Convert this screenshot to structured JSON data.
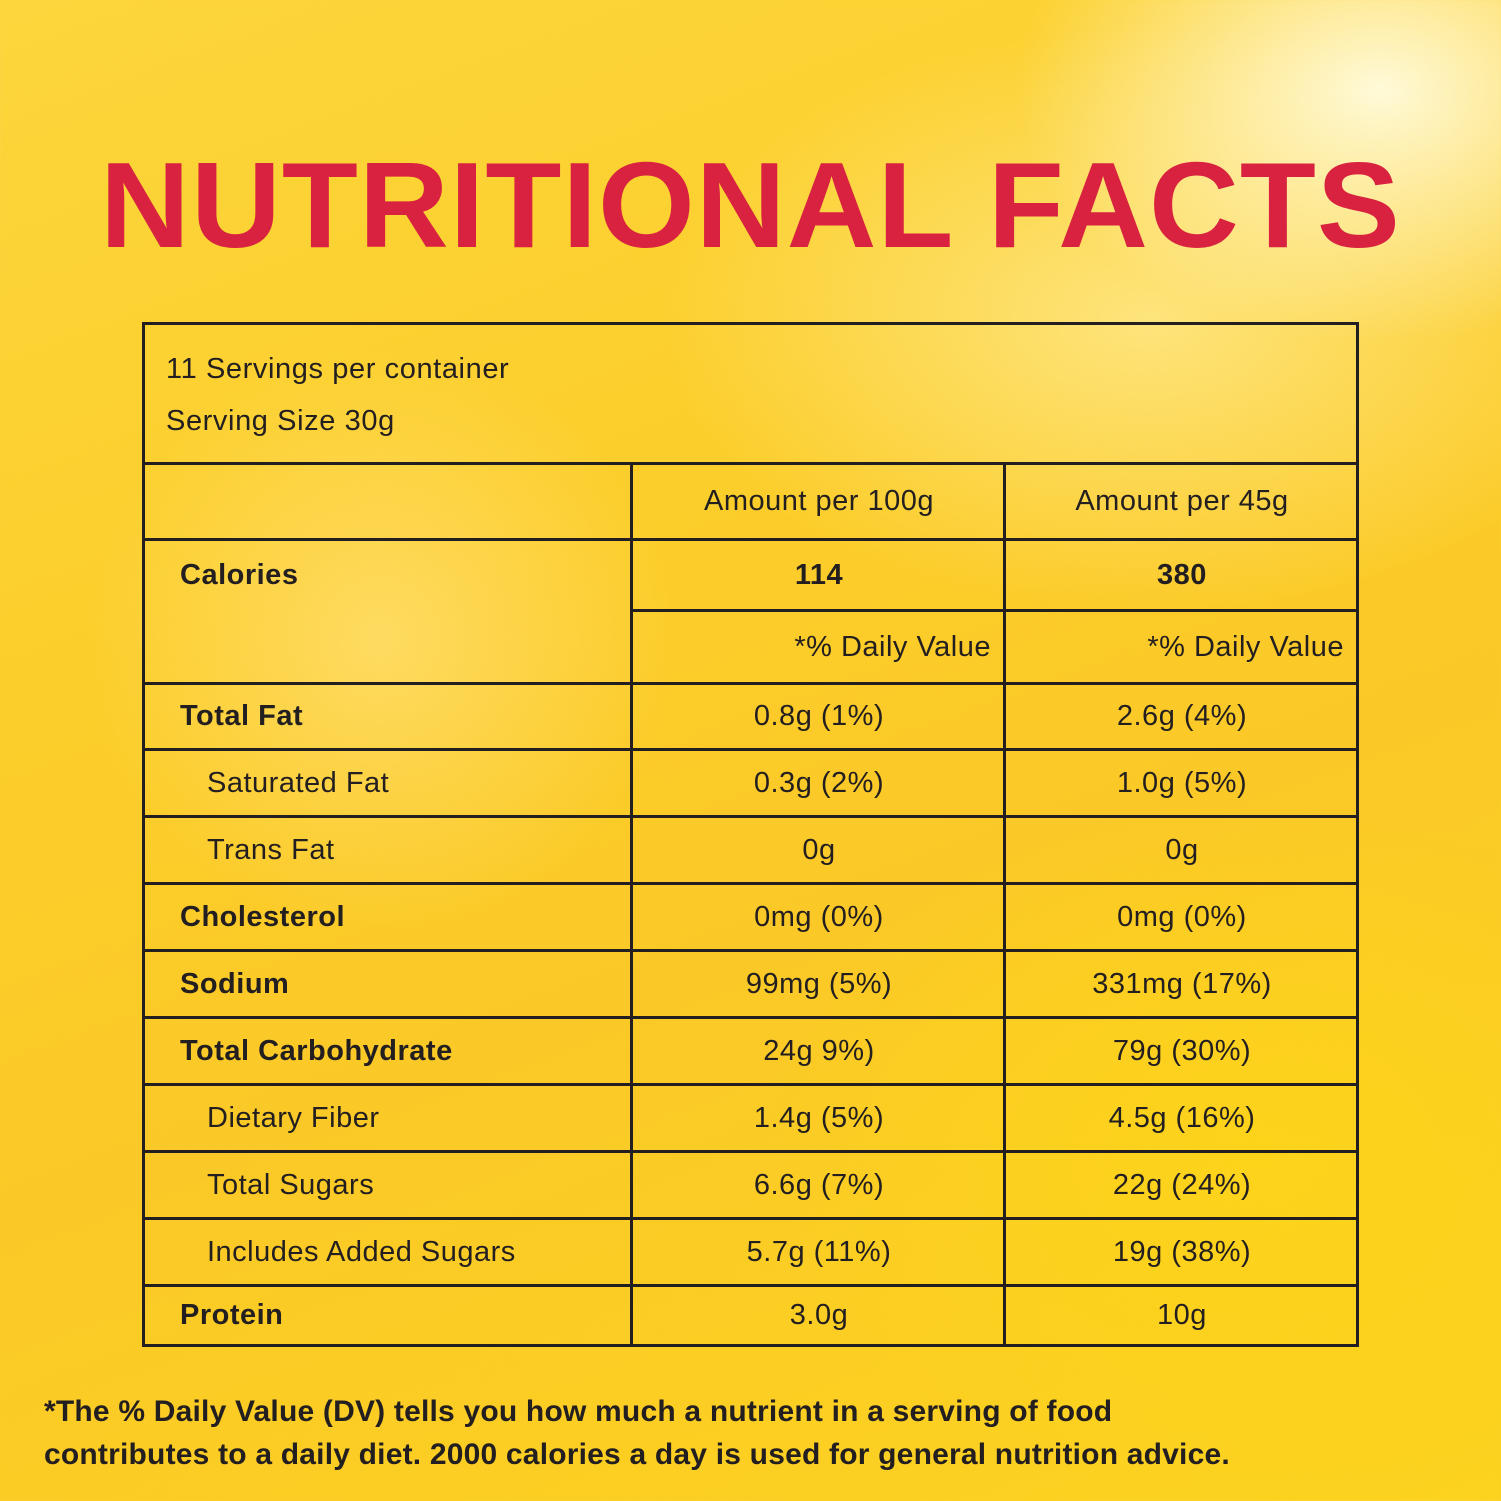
{
  "title": "NUTRITIONAL FACTS",
  "serving": {
    "servings_per_container": "11 Servings per container",
    "serving_size": "Serving Size 30g"
  },
  "columns": {
    "col_a": "Amount per 100g",
    "col_b": "Amount per 45g"
  },
  "calories": {
    "label": "Calories",
    "col_a": "114",
    "col_b": "380",
    "dv_a": "*% Daily Value",
    "dv_b": "*% Daily Value"
  },
  "rows": [
    {
      "label": "Total Fat",
      "col_a": "0.8g (1%)",
      "col_b": "2.6g (4%)"
    },
    {
      "label": "Saturated Fat",
      "col_a": "0.3g (2%)",
      "col_b": "1.0g (5%)"
    },
    {
      "label": "Trans Fat",
      "col_a": "0g",
      "col_b": "0g"
    },
    {
      "label": "Cholesterol",
      "col_a": "0mg (0%)",
      "col_b": "0mg (0%)"
    },
    {
      "label": "Sodium",
      "col_a": "99mg (5%)",
      "col_b": "331mg (17%)"
    },
    {
      "label": "Total Carbohydrate",
      "col_a": "24g 9%)",
      "col_b": "79g (30%)"
    },
    {
      "label": "Dietary Fiber",
      "col_a": "1.4g (5%)",
      "col_b": "4.5g (16%)"
    },
    {
      "label": "Total Sugars",
      "col_a": "6.6g (7%)",
      "col_b": "22g (24%)"
    },
    {
      "label": "Includes Added Sugars",
      "col_a": "5.7g (11%)",
      "col_b": "19g (38%)"
    },
    {
      "label": "Protein",
      "col_a": "3.0g",
      "col_b": "10g"
    }
  ],
  "footnote": {
    "line1": "*The % Daily Value (DV) tells you how much a nutrient in a serving of food",
    "line2": "contributes to a daily diet. 2000 calories a day is used for general nutrition advice."
  },
  "colors": {
    "title": "#d92240",
    "ink": "#231f20",
    "background": "#fcd02c"
  }
}
